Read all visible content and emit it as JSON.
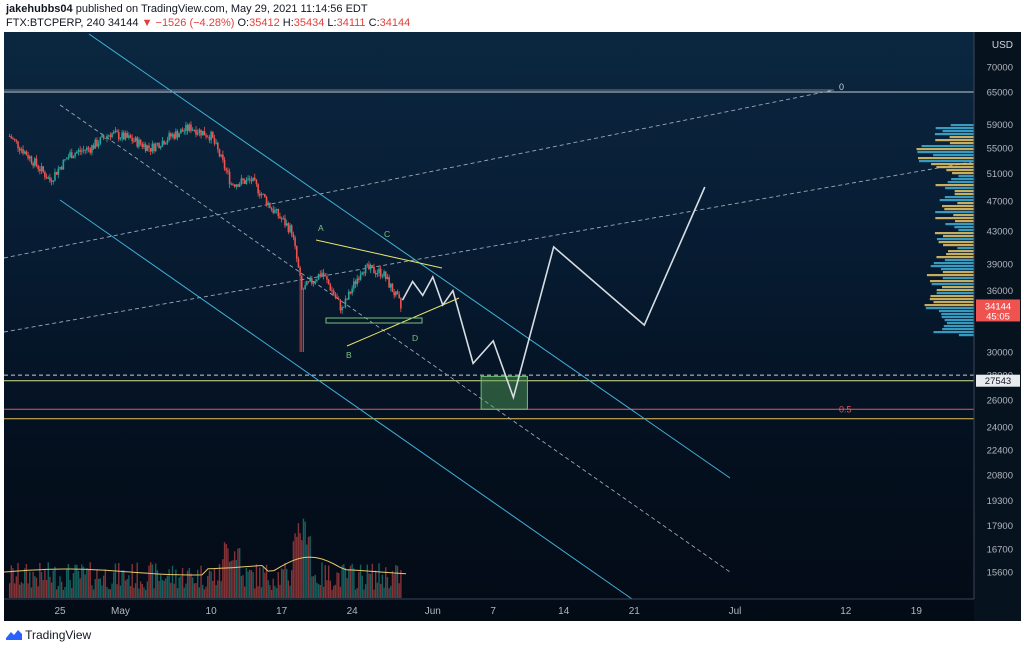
{
  "header": {
    "author": "jakehubbs04",
    "published_text": "published on TradingView.com, May 29, 2021 11:14:56 EDT",
    "symbol": "FTX:BTCPERP, 240",
    "last": "34144",
    "change": "−1526 (−4.28%)",
    "o_label": "O:",
    "o_val": "35412",
    "h_label": "H:",
    "h_val": "35434",
    "l_label": "L:",
    "l_val": "34111",
    "c_label": "C:",
    "c_val": "34144"
  },
  "footer": {
    "brand": "TradingView"
  },
  "chart_data": {
    "type": "candlestick",
    "currency": "USD",
    "y_scale": "log",
    "y_ticks": [
      "70000",
      "65000",
      "59000",
      "55000",
      "51000",
      "47000",
      "43000",
      "39000",
      "36000",
      "30000",
      "28000",
      "26000",
      "24000",
      "22400",
      "20800",
      "19300",
      "17900",
      "16700",
      "15600"
    ],
    "x_ticks": [
      "25",
      "May",
      "10",
      "17",
      "24",
      "Jun",
      "7",
      "14",
      "21",
      "Jul",
      "12",
      "19"
    ],
    "last_price_label": "34144",
    "countdown_label": "45:05",
    "marked_level_label": "27543",
    "fib_labels": [
      "0",
      "0.5"
    ],
    "pattern_labels": [
      "A",
      "B",
      "C",
      "D"
    ],
    "price_path": [
      {
        "date": "Apr 20",
        "close": 57000
      },
      {
        "date": "Apr 22",
        "close": 53500
      },
      {
        "date": "Apr 24",
        "close": 50000
      },
      {
        "date": "Apr 26",
        "close": 54000
      },
      {
        "date": "Apr 28",
        "close": 55000
      },
      {
        "date": "Apr 30",
        "close": 57500
      },
      {
        "date": "May 2",
        "close": 56500
      },
      {
        "date": "May 4",
        "close": 55000
      },
      {
        "date": "May 6",
        "close": 57000
      },
      {
        "date": "May 8",
        "close": 58500
      },
      {
        "date": "May 10",
        "close": 57000
      },
      {
        "date": "May 12",
        "close": 49500
      },
      {
        "date": "May 14",
        "close": 50000
      },
      {
        "date": "May 16",
        "close": 46000
      },
      {
        "date": "May 18",
        "close": 43000
      },
      {
        "date": "May 19",
        "close": 36000
      },
      {
        "date": "May 21",
        "close": 38000
      },
      {
        "date": "May 23",
        "close": 34000
      },
      {
        "date": "May 25",
        "close": 38500
      },
      {
        "date": "May 27",
        "close": 38000
      },
      {
        "date": "May 29",
        "close": 34144
      }
    ],
    "projection_path": [
      {
        "date": "May 29",
        "value": 35000
      },
      {
        "date": "May 30",
        "value": 37000
      },
      {
        "date": "May 31",
        "value": 35500
      },
      {
        "date": "Jun 1",
        "value": 37500
      },
      {
        "date": "Jun 2",
        "value": 34500
      },
      {
        "date": "Jun 3",
        "value": 36000
      },
      {
        "date": "Jun 5",
        "value": 29000
      },
      {
        "date": "Jun 7",
        "value": 31000
      },
      {
        "date": "Jun 9",
        "value": 26200
      },
      {
        "date": "Jun 13",
        "value": 41000
      },
      {
        "date": "Jun 22",
        "value": 32500
      },
      {
        "date": "Jun 28",
        "value": 49000
      }
    ],
    "horizontal_levels": [
      {
        "value": 65000,
        "color": "#c8ccd4"
      },
      {
        "value": 27543,
        "color": "#d8e28a"
      },
      {
        "value": 25300,
        "color": "#e05a5a"
      },
      {
        "value": 24600,
        "color": "#e8c05a"
      }
    ],
    "target_zone": {
      "from_date": "Jun 6",
      "to_date": "Jun 10",
      "low": 25300,
      "high": 27900,
      "color": "#57a65a"
    },
    "colors": {
      "up": "#26a69a",
      "down": "#ef5350",
      "channel": "#3fb2d8",
      "triangle": "#e8e26a",
      "projection": "#d7dde3",
      "volume_ma": "#e8c86a"
    }
  }
}
